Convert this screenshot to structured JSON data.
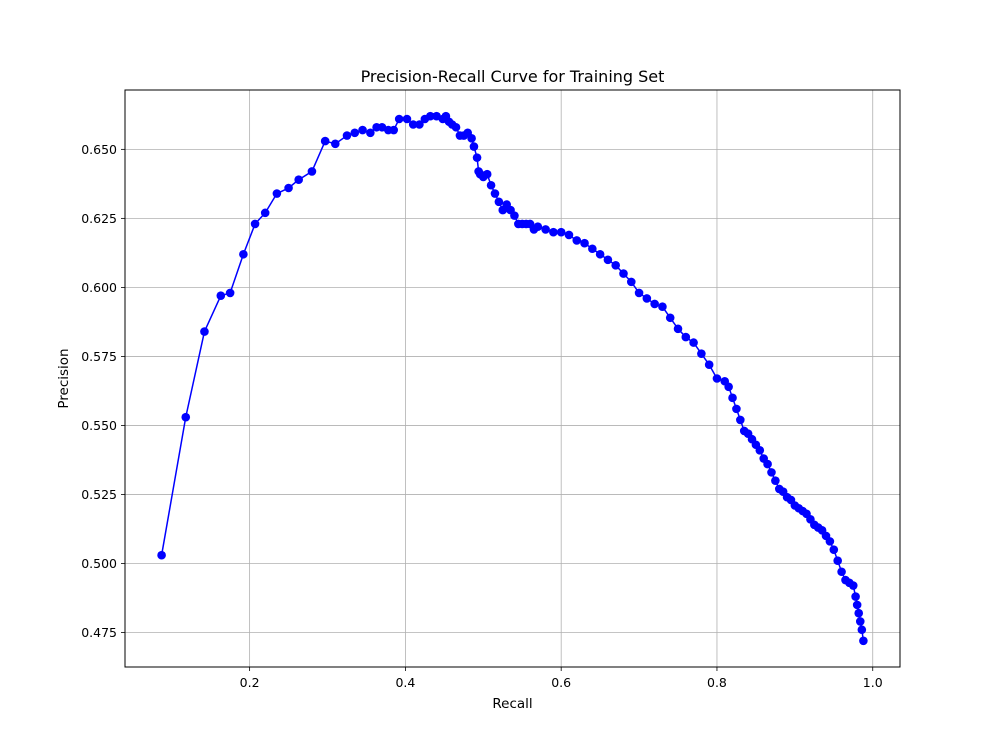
{
  "chart_data": {
    "type": "line",
    "title": "Precision-Recall Curve for Training Set",
    "xlabel": "Recall",
    "ylabel": "Precision",
    "xlim": [
      0.04,
      1.035
    ],
    "ylim": [
      0.4625,
      0.6715
    ],
    "xticks": [
      0.2,
      0.4,
      0.6,
      0.8,
      1.0
    ],
    "xtick_labels": [
      "0.2",
      "0.4",
      "0.6",
      "0.8",
      "1.0"
    ],
    "yticks": [
      0.475,
      0.5,
      0.525,
      0.55,
      0.575,
      0.6,
      0.625,
      0.65
    ],
    "ytick_labels": [
      "0.475",
      "0.500",
      "0.525",
      "0.550",
      "0.575",
      "0.600",
      "0.625",
      "0.650"
    ],
    "grid": true,
    "series": [
      {
        "color": "#0000ff",
        "marker": "circle",
        "x": [
          0.087,
          0.118,
          0.142,
          0.163,
          0.175,
          0.192,
          0.207,
          0.22,
          0.235,
          0.25,
          0.263,
          0.28,
          0.297,
          0.31,
          0.325,
          0.335,
          0.345,
          0.355,
          0.363,
          0.37,
          0.378,
          0.385,
          0.392,
          0.402,
          0.41,
          0.418,
          0.425,
          0.432,
          0.44,
          0.448,
          0.452,
          0.456,
          0.46,
          0.465,
          0.47,
          0.475,
          0.48,
          0.485,
          0.488,
          0.492,
          0.494,
          0.496,
          0.5,
          0.505,
          0.51,
          0.515,
          0.52,
          0.525,
          0.53,
          0.535,
          0.54,
          0.545,
          0.55,
          0.555,
          0.56,
          0.565,
          0.57,
          0.58,
          0.59,
          0.6,
          0.61,
          0.62,
          0.63,
          0.64,
          0.65,
          0.66,
          0.67,
          0.68,
          0.69,
          0.7,
          0.71,
          0.72,
          0.73,
          0.74,
          0.75,
          0.76,
          0.77,
          0.78,
          0.79,
          0.8,
          0.81,
          0.815,
          0.82,
          0.825,
          0.83,
          0.835,
          0.84,
          0.845,
          0.85,
          0.855,
          0.86,
          0.865,
          0.87,
          0.875,
          0.88,
          0.885,
          0.89,
          0.895,
          0.9,
          0.905,
          0.91,
          0.915,
          0.92,
          0.925,
          0.93,
          0.935,
          0.94,
          0.945,
          0.95,
          0.955,
          0.96,
          0.965,
          0.97,
          0.975,
          0.978,
          0.98,
          0.982,
          0.984,
          0.986,
          0.988
        ],
        "y": [
          0.503,
          0.553,
          0.584,
          0.597,
          0.598,
          0.612,
          0.623,
          0.627,
          0.634,
          0.636,
          0.639,
          0.642,
          0.653,
          0.652,
          0.655,
          0.656,
          0.657,
          0.656,
          0.658,
          0.658,
          0.657,
          0.657,
          0.661,
          0.661,
          0.659,
          0.659,
          0.661,
          0.662,
          0.662,
          0.661,
          0.662,
          0.66,
          0.659,
          0.658,
          0.655,
          0.655,
          0.656,
          0.654,
          0.651,
          0.647,
          0.642,
          0.641,
          0.64,
          0.641,
          0.637,
          0.634,
          0.631,
          0.628,
          0.63,
          0.628,
          0.626,
          0.623,
          0.623,
          0.623,
          0.623,
          0.621,
          0.622,
          0.621,
          0.62,
          0.62,
          0.619,
          0.617,
          0.616,
          0.614,
          0.612,
          0.61,
          0.608,
          0.605,
          0.602,
          0.598,
          0.596,
          0.594,
          0.593,
          0.589,
          0.585,
          0.582,
          0.58,
          0.576,
          0.572,
          0.567,
          0.566,
          0.564,
          0.56,
          0.556,
          0.552,
          0.548,
          0.547,
          0.545,
          0.543,
          0.541,
          0.538,
          0.536,
          0.533,
          0.53,
          0.527,
          0.526,
          0.524,
          0.523,
          0.521,
          0.52,
          0.519,
          0.518,
          0.516,
          0.514,
          0.513,
          0.512,
          0.51,
          0.508,
          0.505,
          0.501,
          0.497,
          0.494,
          0.493,
          0.492,
          0.488,
          0.485,
          0.482,
          0.479,
          0.476,
          0.472
        ]
      }
    ]
  }
}
